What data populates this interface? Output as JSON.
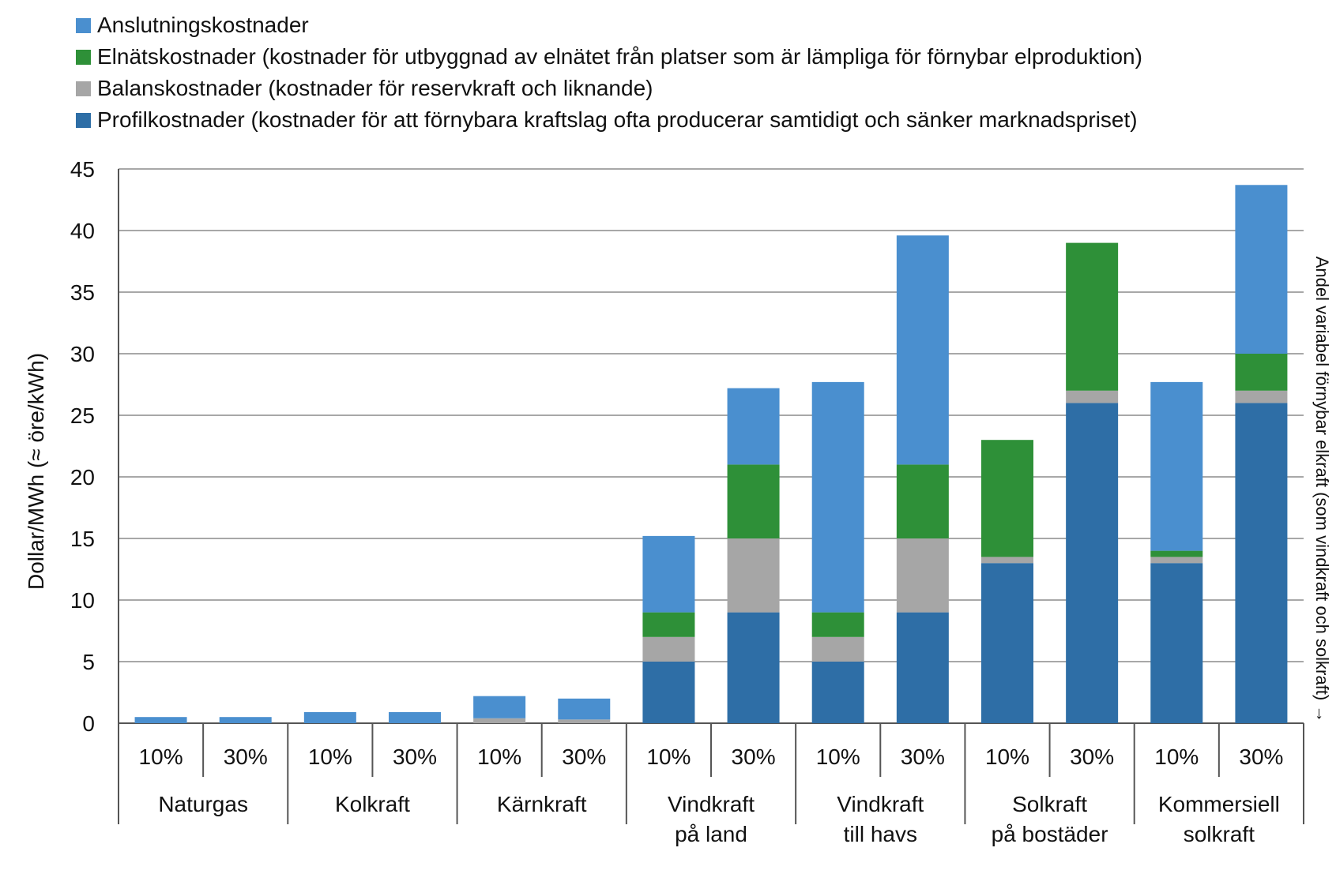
{
  "chart_data": {
    "type": "bar",
    "stacked": true,
    "ylabel": "Dollar/MWh (≈ öre/kWh)",
    "right_label": "Andel variabel förnybar elkraft (som vindkraft och solkraft) →",
    "ylim": [
      0,
      45
    ],
    "yticks": [
      "0",
      "5",
      "10",
      "15",
      "20",
      "25",
      "30",
      "35",
      "40",
      "45"
    ],
    "grid": true,
    "legend_position": "top-left",
    "groups": [
      {
        "label": "Naturgas",
        "sublabels": [
          "10%",
          "30%"
        ]
      },
      {
        "label": "Kolkraft",
        "sublabels": [
          "10%",
          "30%"
        ]
      },
      {
        "label": "Kärnkraft",
        "sublabels": [
          "10%",
          "30%"
        ]
      },
      {
        "label": "Vindkraft\npå land",
        "sublabels": [
          "10%",
          "30%"
        ]
      },
      {
        "label": "Vindkraft\ntill havs",
        "sublabels": [
          "10%",
          "30%"
        ]
      },
      {
        "label": "Solkraft\npå bostäder",
        "sublabels": [
          "10%",
          "30%"
        ]
      },
      {
        "label": "Kommersiell\nsolkraft",
        "sublabels": [
          "10%",
          "30%"
        ]
      }
    ],
    "series": [
      {
        "name": "Profilkostnader (kostnader för att förnybara kraftslag ofta producerar samtidigt och sänker marknadspriset)",
        "color": "#2e6ea6",
        "values": [
          0,
          0,
          0,
          0,
          0,
          0,
          5,
          9,
          5,
          9,
          13,
          26,
          13,
          26
        ]
      },
      {
        "name": "Balanskostnader (kostnader för reservkraft och liknande)",
        "color": "#a6a6a6",
        "values": [
          0,
          0,
          0,
          0,
          0.4,
          0.3,
          2,
          6,
          2,
          6,
          0.5,
          1,
          0.5,
          1
        ]
      },
      {
        "name": "Elnätskostnader (kostnader för utbyggnad av elnätet från platser som är lämpliga för förnybar elproduktion)",
        "color": "#2e9038",
        "values": [
          0,
          0,
          0,
          0,
          0,
          0,
          2,
          6,
          2,
          6,
          9.5,
          12,
          0.5,
          3
        ]
      },
      {
        "name": "Anslutningskostnader",
        "color": "#4a8fcf",
        "values": [
          0.5,
          0.5,
          0.9,
          0.9,
          1.8,
          1.7,
          6.2,
          6.2,
          18.7,
          18.6,
          0,
          0,
          13.7,
          13.7
        ]
      }
    ]
  }
}
